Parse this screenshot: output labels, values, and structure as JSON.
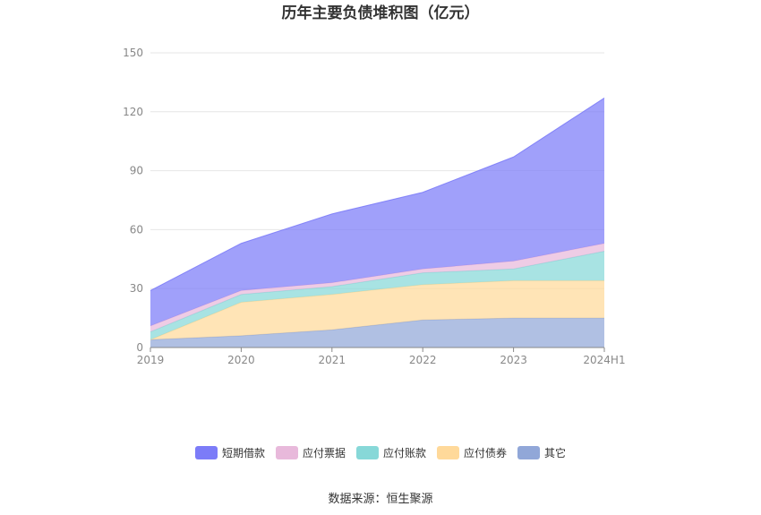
{
  "chart_data": {
    "type": "area",
    "stacked": true,
    "title": "历年主要负债堆积图（亿元）",
    "categories": [
      "2019",
      "2020",
      "2021",
      "2022",
      "2023",
      "2024H1"
    ],
    "ylim": [
      0,
      150
    ],
    "yticks": [
      0,
      30,
      60,
      90,
      120,
      150
    ],
    "grid": true,
    "legend_position": "bottom",
    "series": [
      {
        "name": "其它",
        "color": "#91a7d8",
        "values": [
          4,
          6,
          9,
          14,
          15,
          15
        ]
      },
      {
        "name": "应付债券",
        "color": "#ffd99a",
        "values": [
          0,
          17,
          18,
          18,
          19,
          19
        ]
      },
      {
        "name": "应付账款",
        "color": "#87d8d8",
        "values": [
          4,
          4,
          4,
          6,
          6,
          15
        ]
      },
      {
        "name": "应付票据",
        "color": "#e8b9db",
        "values": [
          3,
          2,
          2,
          2,
          4,
          4
        ]
      },
      {
        "name": "短期借款",
        "color": "#7c7cf8",
        "values": [
          18,
          24,
          35,
          39,
          53,
          74
        ]
      }
    ],
    "legend_order": [
      "短期借款",
      "应付票据",
      "应付账款",
      "应付债券",
      "其它"
    ]
  },
  "source_text": "数据来源：恒生聚源"
}
